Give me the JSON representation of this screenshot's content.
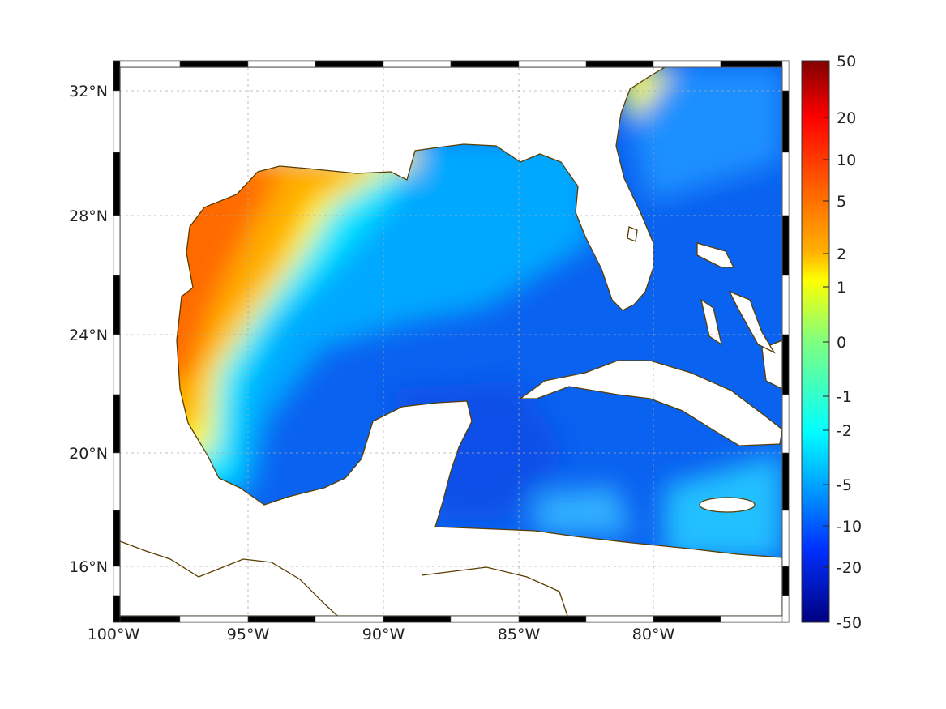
{
  "map": {
    "lon_labels": [
      "100°W",
      "95°W",
      "90°W",
      "85°W",
      "80°W"
    ],
    "lat_labels": [
      "32°N",
      "28°N",
      "24°N",
      "20°N",
      "16°N"
    ],
    "coast_color": "#5a3d00"
  },
  "colorbar": {
    "ticks": [
      "50",
      "20",
      "10",
      "5",
      "2",
      "1",
      "0",
      "-1",
      "-2",
      "-5",
      "-10",
      "-20",
      "-50"
    ],
    "colormap": "jet"
  }
}
